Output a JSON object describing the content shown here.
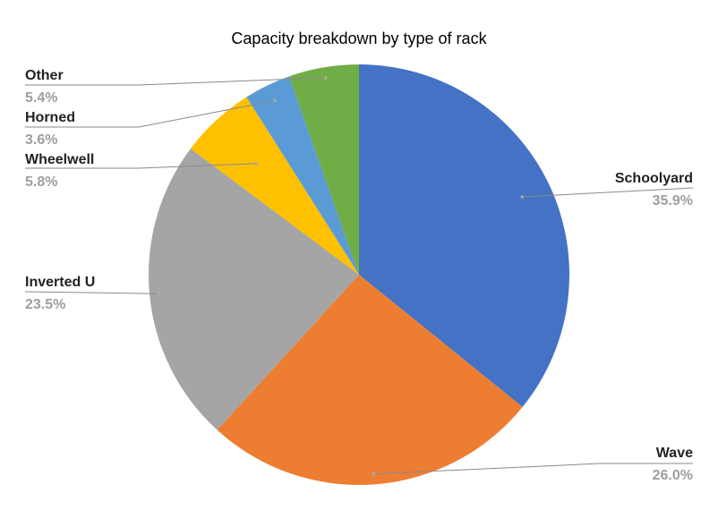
{
  "chart_data": {
    "type": "pie",
    "title": "Capacity breakdown by type of rack",
    "slices": [
      {
        "label": "Schoolyard",
        "value": 35.9,
        "pct_label": "35.9%",
        "color": "#4472C4"
      },
      {
        "label": "Wave",
        "value": 26.0,
        "pct_label": "26.0%",
        "color": "#ED7D31"
      },
      {
        "label": "Inverted U",
        "value": 23.5,
        "pct_label": "23.5%",
        "color": "#A5A5A5"
      },
      {
        "label": "Wheelwell",
        "value": 5.8,
        "pct_label": "5.8%",
        "color": "#FFC000"
      },
      {
        "label": "Horned",
        "value": 3.6,
        "pct_label": "3.6%",
        "color": "#5B9BD5"
      },
      {
        "label": "Other",
        "value": 5.4,
        "pct_label": "5.4%",
        "color": "#70AD47"
      }
    ]
  }
}
